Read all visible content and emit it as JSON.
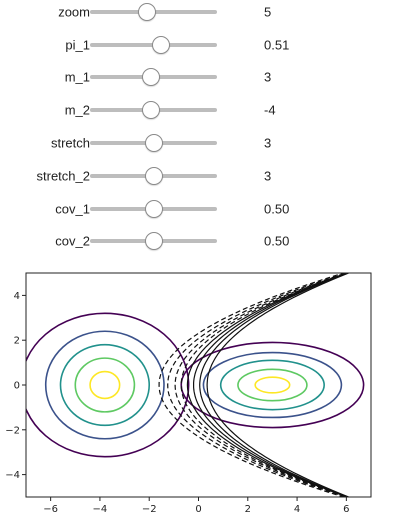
{
  "sliders": [
    {
      "label": "zoom",
      "value": "5",
      "level": 0.45
    },
    {
      "label": "pi_1",
      "value": "0.51",
      "level": 0.56
    },
    {
      "label": "m_1",
      "value": "3",
      "level": 0.48
    },
    {
      "label": "m_2",
      "value": "-4",
      "level": 0.48
    },
    {
      "label": "stretch",
      "value": "3",
      "level": 0.5
    },
    {
      "label": "stretch_2",
      "value": "3",
      "level": 0.5
    },
    {
      "label": "cov_1",
      "value": "0.50",
      "level": 0.5
    },
    {
      "label": "cov_2",
      "value": "0.50",
      "level": 0.5
    }
  ],
  "chart_data": {
    "type": "contour",
    "xlim": [
      -7,
      7
    ],
    "ylim": [
      -5,
      5
    ],
    "xticks": [
      "-6",
      "-4",
      "-2",
      "0",
      "2",
      "4",
      "6"
    ],
    "yticks": [
      "4",
      "2",
      "0",
      "-2",
      "-4"
    ],
    "gaussian_1": {
      "center": [
        -3.8,
        0
      ],
      "contour_radii": [
        [
          0.6,
          0.6
        ],
        [
          1.2,
          1.2
        ],
        [
          1.8,
          1.8
        ],
        [
          2.4,
          2.4
        ],
        [
          3.4,
          3.2
        ]
      ]
    },
    "gaussian_2": {
      "center": [
        3.0,
        0
      ],
      "contour_radii": [
        [
          0.7,
          0.35
        ],
        [
          1.4,
          0.7
        ],
        [
          2.1,
          1.1
        ],
        [
          2.8,
          1.45
        ],
        [
          3.7,
          1.9
        ]
      ]
    },
    "contour_colors": [
      "#fde725",
      "#5ec962",
      "#21918c",
      "#3b528b",
      "#440154"
    ],
    "decision_boundary": "hyperbolic curves, solid for positive levels, dashed for negative levels"
  }
}
